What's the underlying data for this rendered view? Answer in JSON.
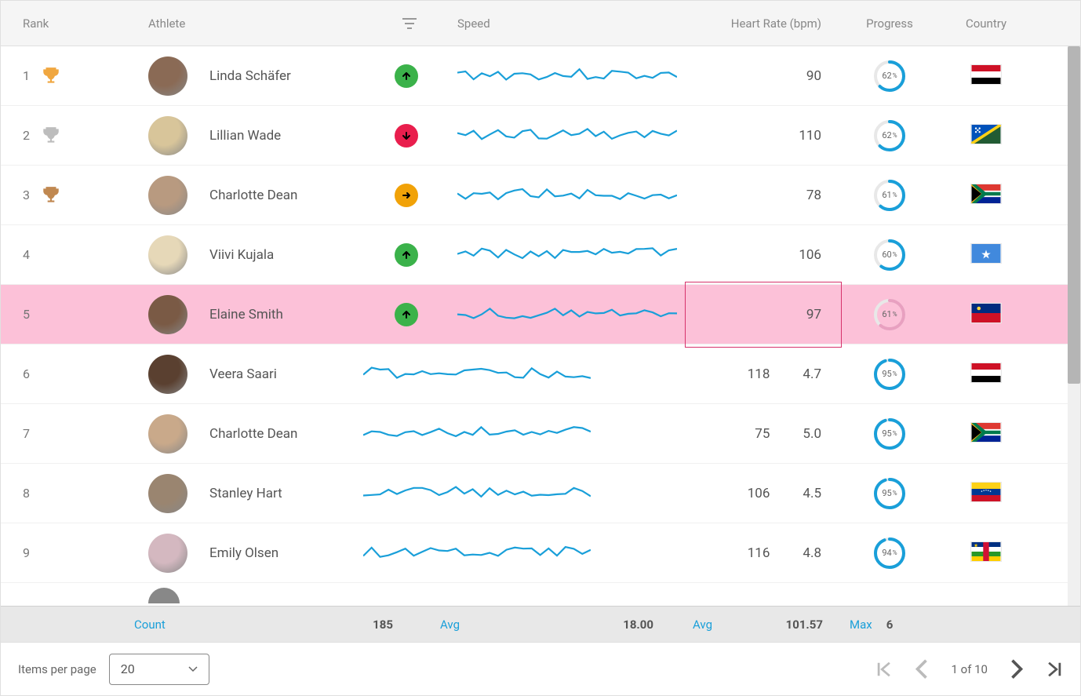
{
  "columns": {
    "rank": "Rank",
    "athlete": "Athlete",
    "speed": "Speed",
    "heart_rate": "Heart Rate (bpm)",
    "progress": "Progress",
    "country": "Country"
  },
  "rows": [
    {
      "rank": 1,
      "trophy": "gold",
      "name": "Linda Schäfer",
      "trend": "up",
      "hr": "90",
      "extra": "",
      "progress": 62,
      "flag": "yemen",
      "avatar": "#8a6a55",
      "highlight": false
    },
    {
      "rank": 2,
      "trophy": "silver",
      "name": "Lillian Wade",
      "trend": "down",
      "hr": "110",
      "extra": "",
      "progress": 62,
      "flag": "solomon",
      "avatar": "#d8c59a",
      "highlight": false
    },
    {
      "rank": 3,
      "trophy": "bronze",
      "name": "Charlotte Dean",
      "trend": "flat",
      "hr": "78",
      "extra": "",
      "progress": 61,
      "flag": "za",
      "avatar": "#b89a80",
      "highlight": false
    },
    {
      "rank": 4,
      "trophy": "",
      "name": "Viivi Kujala",
      "trend": "up",
      "hr": "106",
      "extra": "",
      "progress": 60,
      "flag": "somalia",
      "avatar": "#e6d8b8",
      "highlight": false
    },
    {
      "rank": 5,
      "trophy": "",
      "name": "Elaine Smith",
      "trend": "up",
      "hr": "97",
      "extra": "",
      "progress": 61,
      "flag": "li",
      "avatar": "#7a5a45",
      "highlight": true
    },
    {
      "rank": 6,
      "trophy": "",
      "name": "Veera Saari",
      "trend": "",
      "hr": "118",
      "extra": "4.7",
      "progress": 95,
      "flag": "iraq",
      "avatar": "#5a4030",
      "highlight": false
    },
    {
      "rank": 7,
      "trophy": "",
      "name": "Charlotte Dean",
      "trend": "",
      "hr": "75",
      "extra": "5.0",
      "progress": 95,
      "flag": "za",
      "avatar": "#c9a98a",
      "highlight": false
    },
    {
      "rank": 8,
      "trophy": "",
      "name": "Stanley Hart",
      "trend": "",
      "hr": "106",
      "extra": "4.5",
      "progress": 95,
      "flag": "ve",
      "avatar": "#9a8570",
      "highlight": false
    },
    {
      "rank": 9,
      "trophy": "",
      "name": "Emily Olsen",
      "trend": "",
      "hr": "116",
      "extra": "4.8",
      "progress": 94,
      "flag": "caf",
      "avatar": "#d4b8c0",
      "highlight": false
    }
  ],
  "sparkline_color": "#199fd9",
  "progress_ring": {
    "fg": "#199fd9",
    "bg": "#e8e8e8",
    "pink_fg": "#e8a0c0"
  },
  "trophy_colors": {
    "gold": "#f0a740",
    "silver": "#bdbdbd",
    "bronze": "#c08850"
  },
  "trend_colors": {
    "up_bg": "#3bb24a",
    "down_bg": "#e91e4d",
    "flat_bg": "#f1a208",
    "arrow": "#000000"
  },
  "highlight_bg": "#fcc1d8",
  "highlight_border": "#d6336c",
  "flags": {
    "yemen": [
      {
        "c": "#ce1126",
        "y": 0,
        "h": 0.333
      },
      {
        "c": "#ffffff",
        "y": 0.333,
        "h": 0.333
      },
      {
        "c": "#000000",
        "y": 0.666,
        "h": 0.334
      }
    ],
    "solomon": "solomon",
    "za": "za",
    "somalia": "somalia",
    "li": "li",
    "iraq": [
      {
        "c": "#ce1126",
        "y": 0,
        "h": 0.333
      },
      {
        "c": "#ffffff",
        "y": 0.333,
        "h": 0.333
      },
      {
        "c": "#000000",
        "y": 0.666,
        "h": 0.334
      }
    ],
    "ve": "ve",
    "caf": "caf"
  },
  "summary": {
    "athlete": {
      "label": "Count",
      "value": "185"
    },
    "speed": {
      "label": "Avg",
      "value": "18.00"
    },
    "hr": {
      "label": "Avg",
      "value": "101.57"
    },
    "prog": {
      "label": "Max",
      "value": "6"
    }
  },
  "footer": {
    "items_per_page_label": "Items per page",
    "items_per_page_value": "20",
    "page_text": "1 of 10"
  }
}
